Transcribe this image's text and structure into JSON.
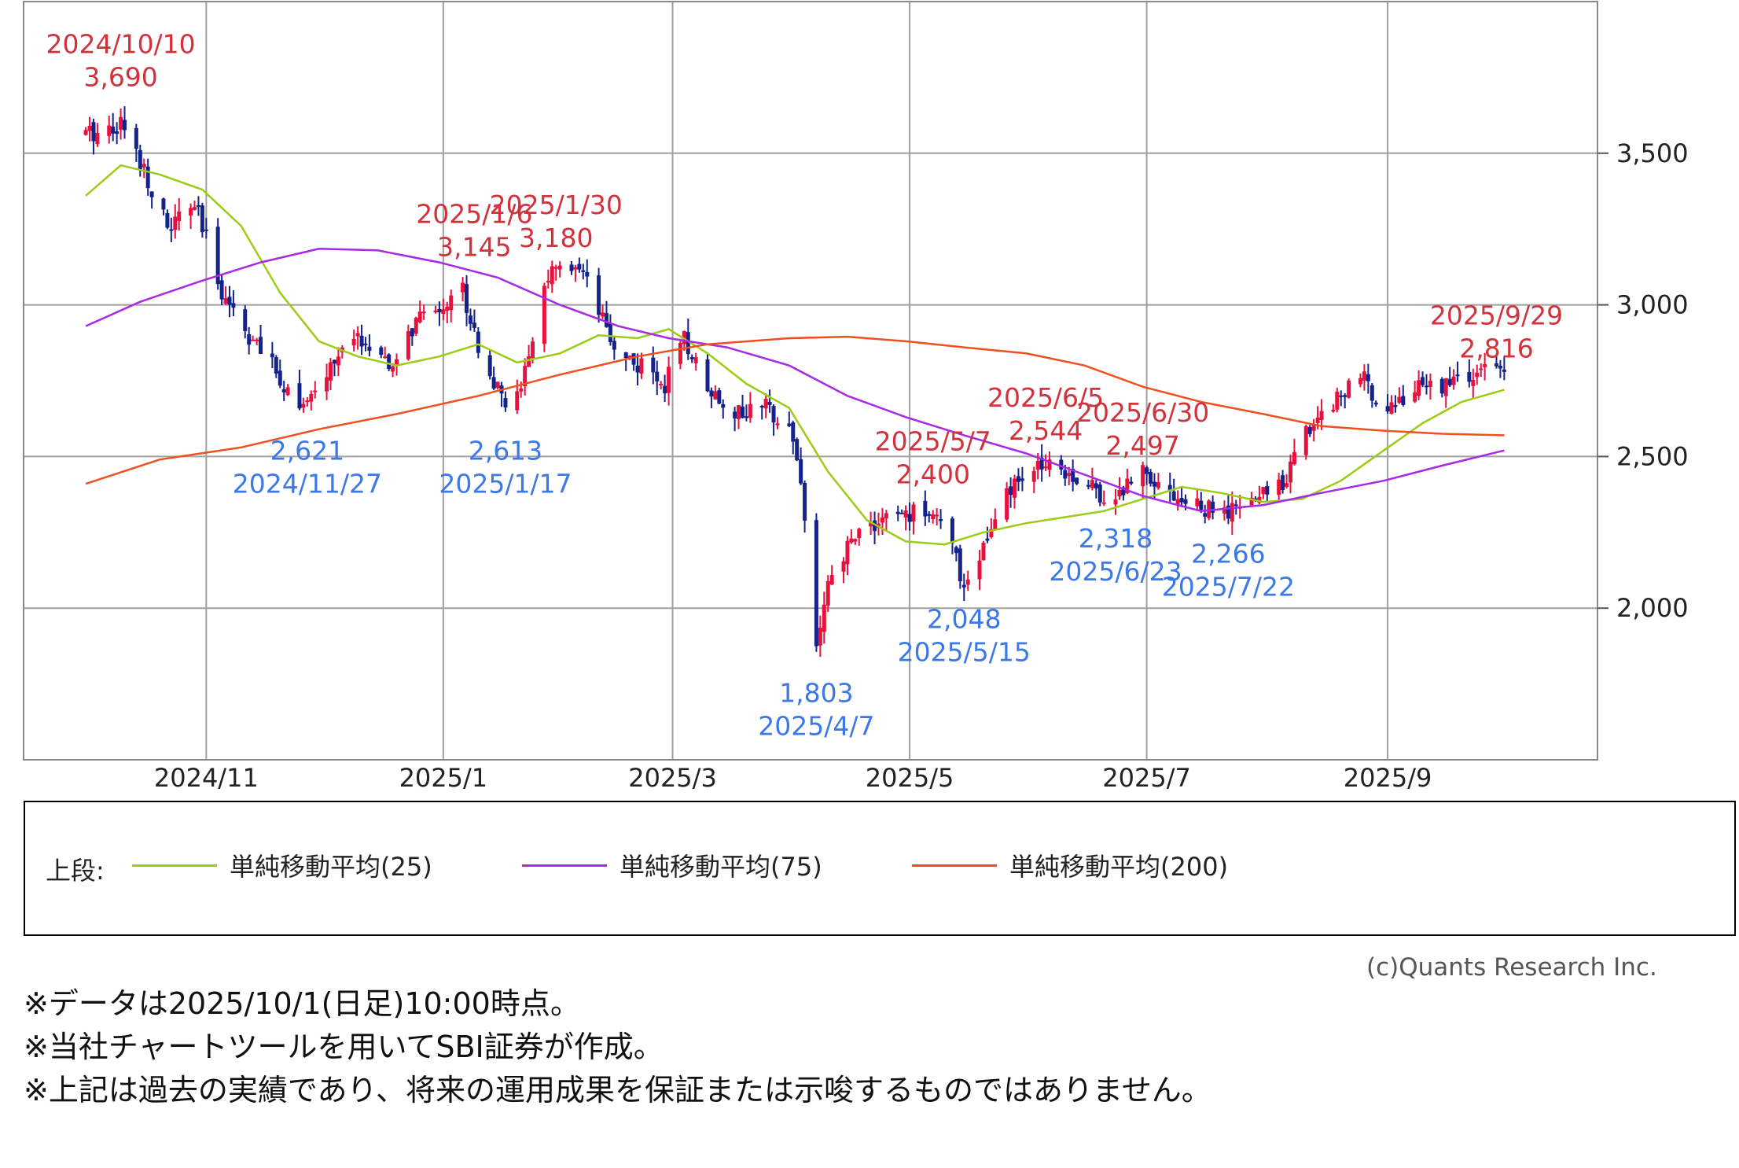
{
  "chart_data": {
    "type": "candlestick",
    "x_axis": {
      "type": "date",
      "ticks": [
        {
          "date": "2024-11-01",
          "label": "2024/11"
        },
        {
          "date": "2025-01-01",
          "label": "2025/1"
        },
        {
          "date": "2025-03-01",
          "label": "2025/3"
        },
        {
          "date": "2025-05-01",
          "label": "2025/5"
        },
        {
          "date": "2025-07-01",
          "label": "2025/7"
        },
        {
          "date": "2025-09-01",
          "label": "2025/9"
        }
      ],
      "range": [
        "2024-09-15",
        "2025-10-25"
      ]
    },
    "y_axis": {
      "position": "right",
      "ticks": [
        {
          "value": 2000,
          "label": "2,000"
        },
        {
          "value": 2500,
          "label": "2,500"
        },
        {
          "value": 3000,
          "label": "3,000"
        },
        {
          "value": 3500,
          "label": "3,500"
        }
      ],
      "range": [
        1500,
        4000
      ]
    },
    "grid": true,
    "up_color": "#e8103c",
    "down_color": "#14238c",
    "price_anchors": [
      [
        "2024-10-01",
        3560
      ],
      [
        "2024-10-10",
        3600
      ],
      [
        "2024-10-16",
        3450
      ],
      [
        "2024-10-22",
        3250
      ],
      [
        "2024-10-29",
        3330
      ],
      [
        "2024-11-05",
        3050
      ],
      [
        "2024-11-12",
        2900
      ],
      [
        "2024-11-21",
        2740
      ],
      [
        "2024-11-27",
        2660
      ],
      [
        "2024-12-04",
        2820
      ],
      [
        "2024-12-11",
        2890
      ],
      [
        "2024-12-18",
        2780
      ],
      [
        "2024-12-25",
        2940
      ],
      [
        "2025-01-06",
        3050
      ],
      [
        "2025-01-10",
        2870
      ],
      [
        "2025-01-17",
        2650
      ],
      [
        "2025-01-23",
        2800
      ],
      [
        "2025-01-27",
        3080
      ],
      [
        "2025-01-30",
        3110
      ],
      [
        "2025-02-06",
        3090
      ],
      [
        "2025-02-13",
        2880
      ],
      [
        "2025-02-20",
        2800
      ],
      [
        "2025-02-27",
        2740
      ],
      [
        "2025-03-04",
        2880
      ],
      [
        "2025-03-11",
        2720
      ],
      [
        "2025-03-18",
        2640
      ],
      [
        "2025-03-25",
        2660
      ],
      [
        "2025-03-31",
        2620
      ],
      [
        "2025-04-03",
        2420
      ],
      [
        "2025-04-07",
        1880
      ],
      [
        "2025-04-10",
        2060
      ],
      [
        "2025-04-17",
        2250
      ],
      [
        "2025-04-24",
        2290
      ],
      [
        "2025-05-01",
        2310
      ],
      [
        "2025-05-07",
        2330
      ],
      [
        "2025-05-12",
        2190
      ],
      [
        "2025-05-15",
        2080
      ],
      [
        "2025-05-20",
        2200
      ],
      [
        "2025-05-27",
        2390
      ],
      [
        "2025-06-03",
        2460
      ],
      [
        "2025-06-05",
        2500
      ],
      [
        "2025-06-12",
        2440
      ],
      [
        "2025-06-19",
        2380
      ],
      [
        "2025-06-23",
        2360
      ],
      [
        "2025-06-30",
        2470
      ],
      [
        "2025-07-07",
        2380
      ],
      [
        "2025-07-14",
        2330
      ],
      [
        "2025-07-22",
        2310
      ],
      [
        "2025-07-29",
        2360
      ],
      [
        "2025-08-05",
        2420
      ],
      [
        "2025-08-12",
        2600
      ],
      [
        "2025-08-19",
        2700
      ],
      [
        "2025-08-25",
        2760
      ],
      [
        "2025-09-01",
        2660
      ],
      [
        "2025-09-08",
        2720
      ],
      [
        "2025-09-15",
        2740
      ],
      [
        "2025-09-22",
        2760
      ],
      [
        "2025-09-29",
        2790
      ],
      [
        "2025-10-01",
        2760
      ]
    ],
    "series": [
      {
        "name": "単純移動平均(25)",
        "color": "#9ccc14",
        "points": [
          [
            "2024-10-01",
            3360
          ],
          [
            "2024-10-10",
            3460
          ],
          [
            "2024-10-20",
            3430
          ],
          [
            "2024-10-31",
            3380
          ],
          [
            "2024-11-10",
            3260
          ],
          [
            "2024-11-20",
            3040
          ],
          [
            "2024-11-30",
            2880
          ],
          [
            "2024-12-10",
            2830
          ],
          [
            "2024-12-20",
            2800
          ],
          [
            "2024-12-31",
            2830
          ],
          [
            "2025-01-10",
            2870
          ],
          [
            "2025-01-20",
            2810
          ],
          [
            "2025-01-31",
            2840
          ],
          [
            "2025-02-10",
            2900
          ],
          [
            "2025-02-20",
            2890
          ],
          [
            "2025-02-28",
            2920
          ],
          [
            "2025-03-10",
            2840
          ],
          [
            "2025-03-20",
            2740
          ],
          [
            "2025-03-31",
            2660
          ],
          [
            "2025-04-10",
            2450
          ],
          [
            "2025-04-20",
            2290
          ],
          [
            "2025-04-30",
            2220
          ],
          [
            "2025-05-10",
            2210
          ],
          [
            "2025-05-20",
            2250
          ],
          [
            "2025-05-31",
            2280
          ],
          [
            "2025-06-10",
            2300
          ],
          [
            "2025-06-20",
            2320
          ],
          [
            "2025-06-30",
            2360
          ],
          [
            "2025-07-10",
            2400
          ],
          [
            "2025-07-20",
            2380
          ],
          [
            "2025-07-31",
            2350
          ],
          [
            "2025-08-10",
            2360
          ],
          [
            "2025-08-20",
            2420
          ],
          [
            "2025-08-31",
            2520
          ],
          [
            "2025-09-10",
            2610
          ],
          [
            "2025-09-20",
            2680
          ],
          [
            "2025-10-01",
            2720
          ]
        ]
      },
      {
        "name": "単純移動平均(75)",
        "color": "#a829e6",
        "points": [
          [
            "2024-10-01",
            2930
          ],
          [
            "2024-10-15",
            3010
          ],
          [
            "2024-10-31",
            3080
          ],
          [
            "2024-11-15",
            3140
          ],
          [
            "2024-11-30",
            3185
          ],
          [
            "2024-12-15",
            3180
          ],
          [
            "2024-12-31",
            3140
          ],
          [
            "2025-01-15",
            3090
          ],
          [
            "2025-01-31",
            3000
          ],
          [
            "2025-02-15",
            2930
          ],
          [
            "2025-02-28",
            2890
          ],
          [
            "2025-03-15",
            2860
          ],
          [
            "2025-03-31",
            2800
          ],
          [
            "2025-04-15",
            2700
          ],
          [
            "2025-04-30",
            2630
          ],
          [
            "2025-05-15",
            2570
          ],
          [
            "2025-05-31",
            2510
          ],
          [
            "2025-06-15",
            2440
          ],
          [
            "2025-06-30",
            2370
          ],
          [
            "2025-07-15",
            2320
          ],
          [
            "2025-07-31",
            2340
          ],
          [
            "2025-08-15",
            2380
          ],
          [
            "2025-08-31",
            2420
          ],
          [
            "2025-09-15",
            2470
          ],
          [
            "2025-10-01",
            2520
          ]
        ]
      },
      {
        "name": "単純移動平均(200)",
        "color": "#f0501e",
        "points": [
          [
            "2024-10-01",
            2410
          ],
          [
            "2024-10-20",
            2490
          ],
          [
            "2024-11-10",
            2530
          ],
          [
            "2024-11-30",
            2590
          ],
          [
            "2024-12-20",
            2640
          ],
          [
            "2025-01-10",
            2700
          ],
          [
            "2025-01-31",
            2770
          ],
          [
            "2025-02-20",
            2830
          ],
          [
            "2025-03-10",
            2870
          ],
          [
            "2025-03-31",
            2890
          ],
          [
            "2025-04-15",
            2895
          ],
          [
            "2025-04-30",
            2880
          ],
          [
            "2025-05-15",
            2860
          ],
          [
            "2025-05-31",
            2840
          ],
          [
            "2025-06-15",
            2800
          ],
          [
            "2025-06-30",
            2730
          ],
          [
            "2025-07-15",
            2680
          ],
          [
            "2025-07-31",
            2640
          ],
          [
            "2025-08-15",
            2600
          ],
          [
            "2025-08-31",
            2585
          ],
          [
            "2025-09-15",
            2575
          ],
          [
            "2025-10-01",
            2570
          ]
        ]
      }
    ],
    "annotations": [
      {
        "kind": "high",
        "date": "2024/10/10",
        "value": "3,690",
        "anchor_date": "2024-10-10",
        "anchor_value": 3830
      },
      {
        "kind": "high",
        "date": "2025/1/6",
        "value": "3,145",
        "anchor_date": "2025-01-09",
        "anchor_value": 3270
      },
      {
        "kind": "high",
        "date": "2025/1/30",
        "value": "3,180",
        "anchor_date": "2025-01-30",
        "anchor_value": 3300
      },
      {
        "kind": "low",
        "value": "2,621",
        "date": "2024/11/27",
        "anchor_date": "2024-11-27",
        "anchor_value": 2490
      },
      {
        "kind": "low",
        "value": "2,613",
        "date": "2025/1/17",
        "anchor_date": "2025-01-17",
        "anchor_value": 2490
      },
      {
        "kind": "high",
        "date": "2025/5/7",
        "value": "2,400",
        "anchor_date": "2025-05-07",
        "anchor_value": 2520
      },
      {
        "kind": "high",
        "date": "2025/6/5",
        "value": "2,544",
        "anchor_date": "2025-06-05",
        "anchor_value": 2665
      },
      {
        "kind": "high",
        "date": "2025/6/30",
        "value": "2,497",
        "anchor_date": "2025-06-30",
        "anchor_value": 2615
      },
      {
        "kind": "low",
        "value": "1,803",
        "date": "2025/4/7",
        "anchor_date": "2025-04-07",
        "anchor_value": 1690
      },
      {
        "kind": "low",
        "value": "2,048",
        "date": "2025/5/15",
        "anchor_date": "2025-05-15",
        "anchor_value": 1935
      },
      {
        "kind": "low",
        "value": "2,318",
        "date": "2025/6/23",
        "anchor_date": "2025-06-23",
        "anchor_value": 2200
      },
      {
        "kind": "low",
        "value": "2,266",
        "date": "2025/7/22",
        "anchor_date": "2025-07-22",
        "anchor_value": 2150
      },
      {
        "kind": "high",
        "date": "2025/9/29",
        "value": "2,816",
        "anchor_date": "2025-09-29",
        "anchor_value": 2935
      }
    ],
    "label_colors": {
      "high": "#d2323c",
      "low": "#3c78e6"
    }
  },
  "legend": {
    "prefix": "上段:",
    "items": [
      {
        "label": "単純移動平均(25)",
        "color": "#9ccc14"
      },
      {
        "label": "単純移動平均(75)",
        "color": "#a829e6"
      },
      {
        "label": "単純移動平均(200)",
        "color": "#f0501e"
      }
    ]
  },
  "credit": "(c)Quants Research Inc.",
  "notes": [
    "※データは2025/10/1(日足)10:00時点。",
    "※当社チャートツールを用いてSBI証券が作成。",
    "※上記は過去の実績であり、将来の運用成果を保証または示唆するものではありません。"
  ]
}
